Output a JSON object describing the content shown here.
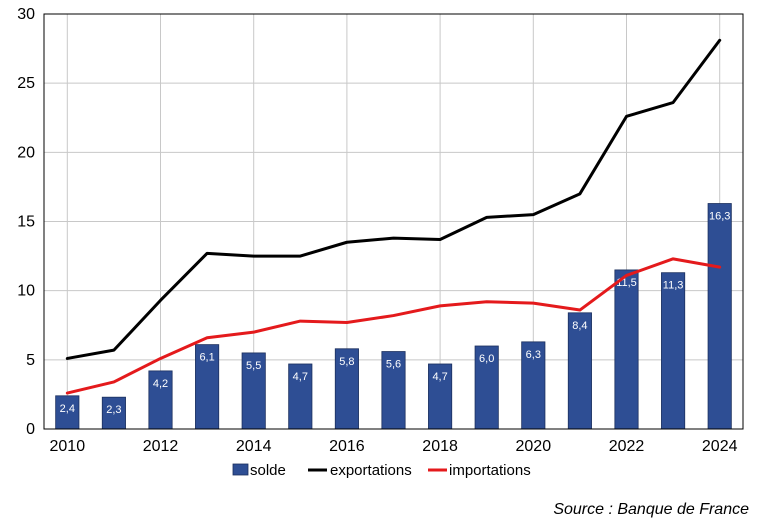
{
  "chart_data": {
    "type": "bar",
    "x": [
      2010,
      2011,
      2012,
      2013,
      2014,
      2015,
      2016,
      2017,
      2018,
      2019,
      2020,
      2021,
      2022,
      2023,
      2024
    ],
    "xticks": [
      "2010",
      "2012",
      "2014",
      "2016",
      "2018",
      "2020",
      "2022",
      "2024"
    ],
    "yticks": [
      "0",
      "5",
      "10",
      "15",
      "20",
      "25",
      "30"
    ],
    "ylim": [
      0,
      30
    ],
    "grid": true,
    "legend_position": "bottom",
    "series": [
      {
        "name": "solde",
        "kind": "bar",
        "color": "#2e4e94",
        "values": [
          2.4,
          2.3,
          4.2,
          6.1,
          5.5,
          4.7,
          5.8,
          5.6,
          4.7,
          6.0,
          6.3,
          8.4,
          11.5,
          11.3,
          16.3
        ],
        "labels": [
          "2,4",
          "2,3",
          "4,2",
          "6,1",
          "5,5",
          "4,7",
          "5,8",
          "5,6",
          "4,7",
          "6,0",
          "6,3",
          "8,4",
          "11,5",
          "11,3",
          "16,3"
        ]
      },
      {
        "name": "exportations",
        "kind": "line",
        "color": "#000000",
        "values": [
          5.1,
          5.7,
          9.3,
          12.7,
          12.5,
          12.5,
          13.5,
          13.8,
          13.7,
          15.3,
          15.5,
          17.0,
          22.6,
          23.6,
          28.1
        ]
      },
      {
        "name": "importations",
        "kind": "line",
        "color": "#e41a1c",
        "values": [
          2.6,
          3.4,
          5.1,
          6.6,
          7.0,
          7.8,
          7.7,
          8.2,
          8.9,
          9.2,
          9.1,
          8.6,
          11.1,
          12.3,
          11.7
        ]
      }
    ]
  },
  "source": "Source : Banque de France"
}
